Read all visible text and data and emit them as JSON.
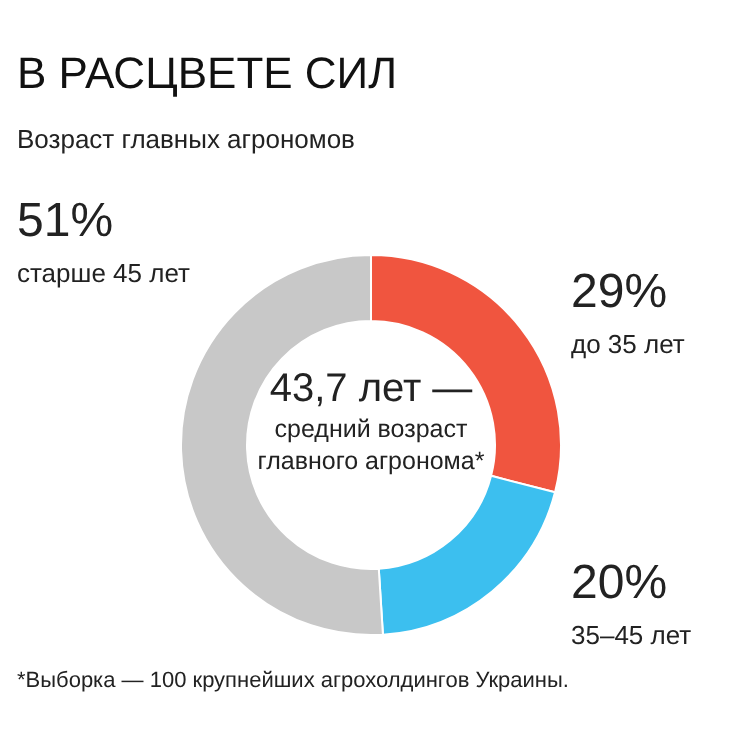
{
  "chart_data": {
    "type": "donut",
    "title": "В РАСЦВЕТЕ СИЛ",
    "subtitle": "Возраст главных агрономов",
    "categories": [
      "до 35 лет",
      "35–45 лет",
      "старше 45 лет"
    ],
    "values": [
      29,
      20,
      51
    ],
    "value_labels": [
      "29%",
      "20%",
      "51%"
    ],
    "colors": [
      "#f0553f",
      "#3cbfef",
      "#c8c8c8"
    ],
    "legend": false,
    "annotations": [
      "43,7 лет —\nсредний возраст\nглавного агронома*",
      "*Выборка — 100 крупнейших агрохолдингов Украины."
    ]
  }
}
